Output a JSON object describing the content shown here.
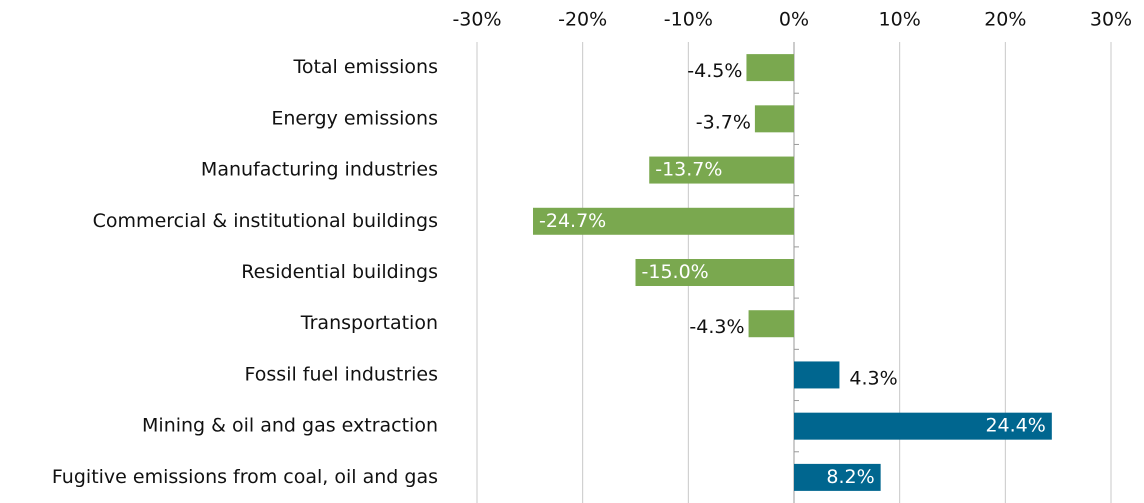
{
  "chart_data": {
    "type": "barh",
    "categories": [
      "Total emissions",
      "Energy emissions",
      "Manufacturing industries",
      "Commercial & institutional buildings",
      "Residential buildings",
      "Transportation",
      "Fossil fuel industries",
      "Mining & oil and gas extraction",
      "Fugitive emissions from coal, oil and gas"
    ],
    "values": [
      -4.5,
      -3.7,
      -13.7,
      -24.7,
      -15.0,
      -4.3,
      4.3,
      24.4,
      8.2
    ],
    "value_labels": [
      "-4.5%",
      "-3.7%",
      "-13.7%",
      "-24.7%",
      "-15.0%",
      "-4.3%",
      "4.3%",
      "24.4%",
      "8.2%"
    ],
    "colors": [
      "#7aa84f",
      "#7aa84f",
      "#7aa84f",
      "#7aa84f",
      "#7aa84f",
      "#7aa84f",
      "#00668f",
      "#00668f",
      "#00668f"
    ],
    "xlim": [
      -30,
      30
    ],
    "xticks": [
      {
        "value": -30,
        "label": "-30%"
      },
      {
        "value": -20,
        "label": "-20%"
      },
      {
        "value": -10,
        "label": "-10%"
      },
      {
        "value": 0,
        "label": "0%"
      },
      {
        "value": 10,
        "label": "10%"
      },
      {
        "value": 20,
        "label": "20%"
      },
      {
        "value": 30,
        "label": "30%"
      }
    ],
    "grid": true
  }
}
